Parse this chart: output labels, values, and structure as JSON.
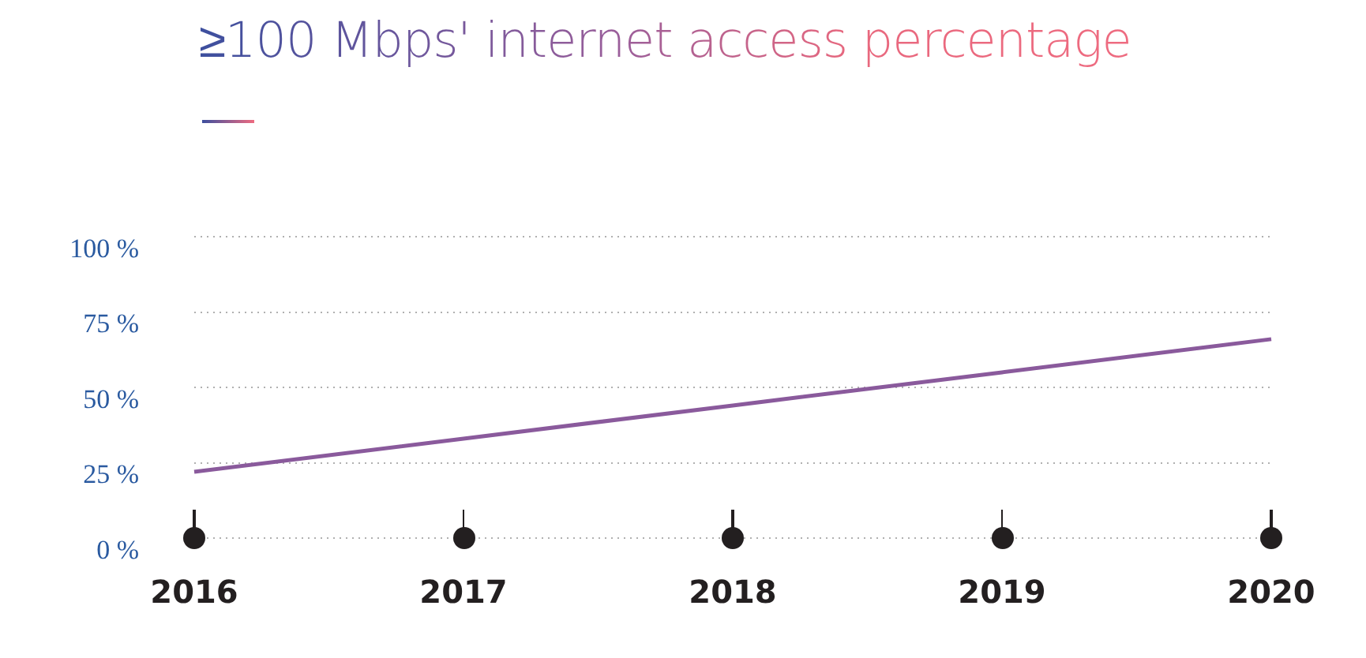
{
  "chart_data": {
    "type": "line",
    "title": "≥100 Mbps' internet access percentage",
    "categories": [
      "2016",
      "2017",
      "2018",
      "2019",
      "2020"
    ],
    "series": [
      {
        "color": "#8a5a9c",
        "values": [
          22,
          33,
          44,
          55,
          66
        ]
      }
    ],
    "ylim": [
      0,
      100
    ],
    "yticks": [
      {
        "value": 0,
        "label": "0 %"
      },
      {
        "value": 25,
        "label": "25 %"
      },
      {
        "value": 50,
        "label": "50 %"
      },
      {
        "value": 75,
        "label": "75 %"
      },
      {
        "value": 100,
        "label": "100 %"
      }
    ],
    "grid": "y",
    "marker": "none",
    "line_style": "solid"
  }
}
